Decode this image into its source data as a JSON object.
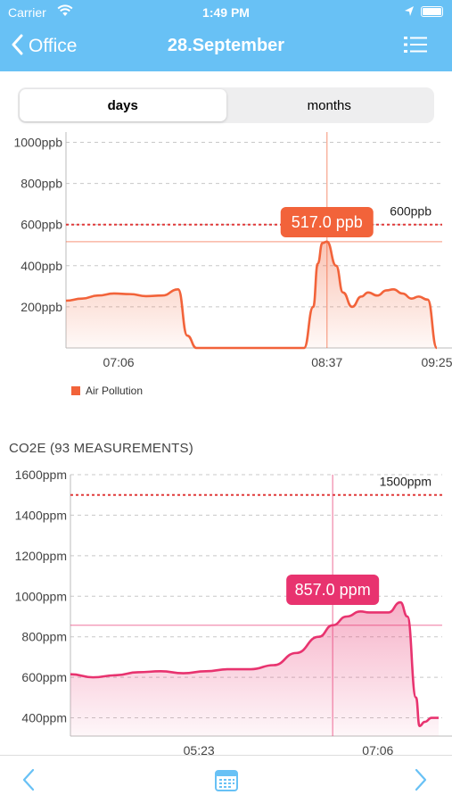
{
  "status_bar": {
    "carrier": "Carrier",
    "time": "1:49 PM"
  },
  "nav": {
    "back_label": "Office",
    "title": "28.September"
  },
  "segmented": {
    "options": [
      "days",
      "months"
    ],
    "selected": "days"
  },
  "colors": {
    "nav": "#68c1f5",
    "air": "#f2633a",
    "co2": "#e8336f",
    "threshold": "#e03a3a"
  },
  "icons": [
    "wifi-icon",
    "location-icon",
    "battery-icon",
    "back-chevron-icon",
    "list-menu-icon",
    "prev-chevron-icon",
    "calendar-icon",
    "next-chevron-icon"
  ],
  "chart_data": [
    {
      "type": "area",
      "series": [
        {
          "name": "Air Pollution",
          "x": [
            "06:43",
            "06:50",
            "06:57",
            "07:04",
            "07:11",
            "07:18",
            "07:25",
            "07:32",
            "07:36",
            "07:40",
            "07:45",
            "07:52",
            "07:59",
            "08:06",
            "08:13",
            "08:20",
            "08:27",
            "08:31",
            "08:33",
            "08:35",
            "08:37",
            "08:41",
            "08:44",
            "08:48",
            "08:52",
            "08:55",
            "08:59",
            "09:03",
            "09:06",
            "09:10",
            "09:14",
            "09:17",
            "09:21",
            "09:25"
          ],
          "values": [
            230,
            240,
            255,
            265,
            262,
            252,
            255,
            285,
            60,
            0,
            0,
            0,
            0,
            0,
            0,
            0,
            0,
            200,
            410,
            510,
            517,
            400,
            270,
            200,
            250,
            270,
            255,
            280,
            285,
            265,
            240,
            250,
            235,
            0
          ]
        }
      ],
      "x_ticks": [
        "07:06",
        "08:37",
        "09:25"
      ],
      "y_ticks": [
        "200ppb",
        "400ppb",
        "600ppb",
        "800ppb",
        "1000ppb"
      ],
      "ylim": [
        0,
        1050
      ],
      "threshold": {
        "value": 600,
        "label": "600ppb"
      },
      "highlight": {
        "value": 517,
        "x": "08:37",
        "label": "517.0 ppb"
      },
      "legend": [
        "Air Pollution"
      ],
      "grid": true
    },
    {
      "type": "area",
      "title": "CO2E (93 MEASUREMENTS)",
      "series": [
        {
          "name": "CO2E",
          "x": [
            "04:09",
            "04:22",
            "04:35",
            "04:48",
            "05:01",
            "05:14",
            "05:27",
            "05:40",
            "05:53",
            "06:06",
            "06:19",
            "06:32",
            "06:40",
            "06:48",
            "06:56",
            "07:01",
            "07:06",
            "07:12",
            "07:19",
            "07:23",
            "07:28",
            "07:30",
            "07:33",
            "07:37",
            "07:41"
          ],
          "values": [
            615,
            600,
            610,
            625,
            630,
            620,
            630,
            640,
            640,
            660,
            720,
            800,
            857,
            900,
            925,
            920,
            920,
            920,
            970,
            900,
            500,
            360,
            380,
            400,
            400
          ]
        }
      ],
      "x_ticks": [
        "05:23",
        "07:06"
      ],
      "y_ticks": [
        "400ppm",
        "600ppm",
        "800ppm",
        "1000ppm",
        "1200ppm",
        "1400ppm",
        "1600ppm"
      ],
      "ylim": [
        310,
        1600
      ],
      "threshold": {
        "value": 1500,
        "label": "1500ppm"
      },
      "highlight": {
        "value": 857,
        "x": "06:40",
        "label": "857.0 ppm"
      },
      "grid": true
    }
  ]
}
